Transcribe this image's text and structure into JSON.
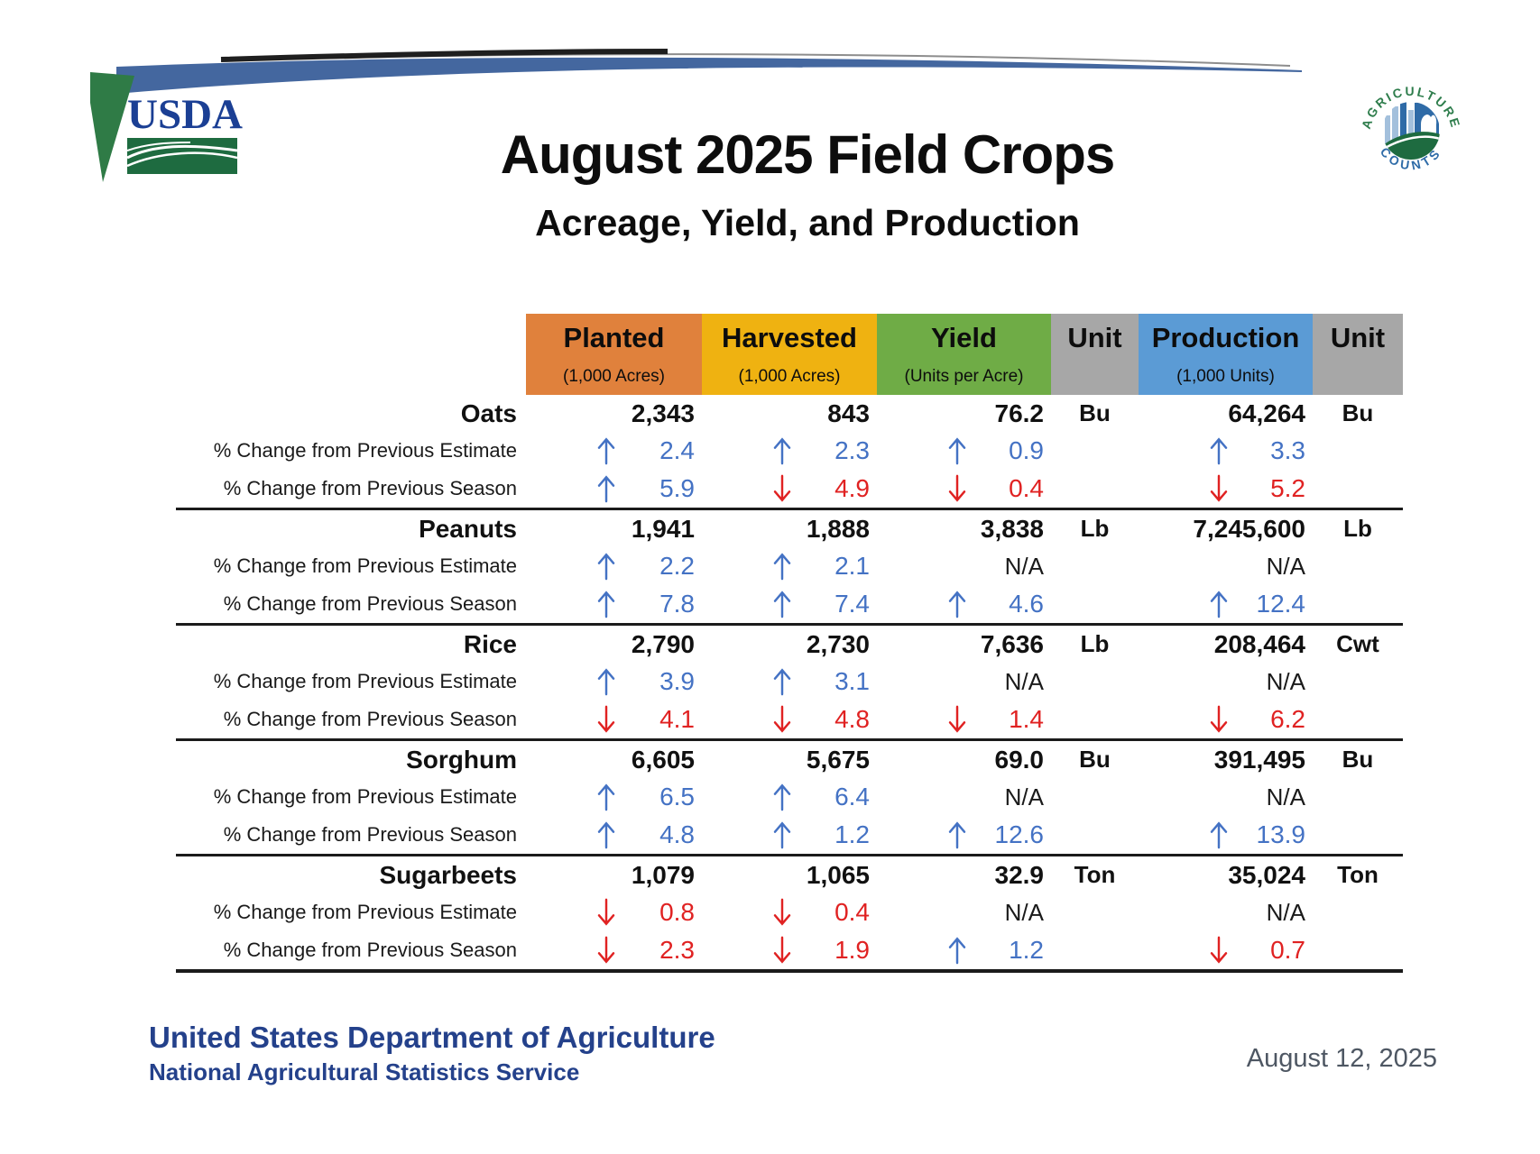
{
  "branding": {
    "usda_wordmark": "USDA",
    "agriculture_counts": {
      "top_arc": "AGRICULTURE",
      "bottom_arc": "COUNTS"
    }
  },
  "title": "August 2025 Field Crops",
  "subtitle": "Acreage, Yield, and Production",
  "table": {
    "columns": [
      {
        "key": "planted",
        "label": "Planted",
        "sublabel": "(1,000 Acres)",
        "color": "#E0813C"
      },
      {
        "key": "harvested",
        "label": "Harvested",
        "sublabel": "(1,000 Acres)",
        "color": "#EFB211"
      },
      {
        "key": "yield",
        "label": "Yield",
        "sublabel": "(Units per Acre)",
        "color": "#6FAC46"
      },
      {
        "key": "yield_unit",
        "label": "Unit",
        "sublabel": "",
        "color": "#A7A7A7"
      },
      {
        "key": "production",
        "label": "Production",
        "sublabel": "(1,000 Units)",
        "color": "#5B9BD5"
      },
      {
        "key": "production_unit",
        "label": "Unit",
        "sublabel": "",
        "color": "#A7A7A7"
      }
    ],
    "subrow_labels": {
      "estimate": "% Change from Previous Estimate",
      "season": "% Change from Previous Season"
    },
    "crops": [
      {
        "name": "Oats",
        "values": {
          "planted": "2,343",
          "harvested": "843",
          "yield": "76.2",
          "yield_unit": "Bu",
          "production": "64,264",
          "production_unit": "Bu"
        },
        "estimate": {
          "planted": {
            "dir": "up",
            "value": "2.4"
          },
          "harvested": {
            "dir": "up",
            "value": "2.3"
          },
          "yield": {
            "dir": "up",
            "value": "0.9"
          },
          "production": {
            "dir": "up",
            "value": "3.3"
          }
        },
        "season": {
          "planted": {
            "dir": "up",
            "value": "5.9"
          },
          "harvested": {
            "dir": "down",
            "value": "4.9"
          },
          "yield": {
            "dir": "down",
            "value": "0.4"
          },
          "production": {
            "dir": "down",
            "value": "5.2"
          }
        }
      },
      {
        "name": "Peanuts",
        "values": {
          "planted": "1,941",
          "harvested": "1,888",
          "yield": "3,838",
          "yield_unit": "Lb",
          "production": "7,245,600",
          "production_unit": "Lb"
        },
        "estimate": {
          "planted": {
            "dir": "up",
            "value": "2.2"
          },
          "harvested": {
            "dir": "up",
            "value": "2.1"
          },
          "yield": {
            "dir": null,
            "value": "N/A"
          },
          "production": {
            "dir": null,
            "value": "N/A"
          }
        },
        "season": {
          "planted": {
            "dir": "up",
            "value": "7.8"
          },
          "harvested": {
            "dir": "up",
            "value": "7.4"
          },
          "yield": {
            "dir": "up",
            "value": "4.6"
          },
          "production": {
            "dir": "up",
            "value": "12.4"
          }
        }
      },
      {
        "name": "Rice",
        "values": {
          "planted": "2,790",
          "harvested": "2,730",
          "yield": "7,636",
          "yield_unit": "Lb",
          "production": "208,464",
          "production_unit": "Cwt"
        },
        "estimate": {
          "planted": {
            "dir": "up",
            "value": "3.9"
          },
          "harvested": {
            "dir": "up",
            "value": "3.1"
          },
          "yield": {
            "dir": null,
            "value": "N/A"
          },
          "production": {
            "dir": null,
            "value": "N/A"
          }
        },
        "season": {
          "planted": {
            "dir": "down",
            "value": "4.1"
          },
          "harvested": {
            "dir": "down",
            "value": "4.8"
          },
          "yield": {
            "dir": "down",
            "value": "1.4"
          },
          "production": {
            "dir": "down",
            "value": "6.2"
          }
        }
      },
      {
        "name": "Sorghum",
        "values": {
          "planted": "6,605",
          "harvested": "5,675",
          "yield": "69.0",
          "yield_unit": "Bu",
          "production": "391,495",
          "production_unit": "Bu"
        },
        "estimate": {
          "planted": {
            "dir": "up",
            "value": "6.5"
          },
          "harvested": {
            "dir": "up",
            "value": "6.4"
          },
          "yield": {
            "dir": null,
            "value": "N/A"
          },
          "production": {
            "dir": null,
            "value": "N/A"
          }
        },
        "season": {
          "planted": {
            "dir": "up",
            "value": "4.8"
          },
          "harvested": {
            "dir": "up",
            "value": "1.2"
          },
          "yield": {
            "dir": "up",
            "value": "12.6"
          },
          "production": {
            "dir": "up",
            "value": "13.9"
          }
        }
      },
      {
        "name": "Sugarbeets",
        "values": {
          "planted": "1,079",
          "harvested": "1,065",
          "yield": "32.9",
          "yield_unit": "Ton",
          "production": "35,024",
          "production_unit": "Ton"
        },
        "estimate": {
          "planted": {
            "dir": "down",
            "value": "0.8"
          },
          "harvested": {
            "dir": "down",
            "value": "0.4"
          },
          "yield": {
            "dir": null,
            "value": "N/A"
          },
          "production": {
            "dir": null,
            "value": "N/A"
          }
        },
        "season": {
          "planted": {
            "dir": "down",
            "value": "2.3"
          },
          "harvested": {
            "dir": "down",
            "value": "1.9"
          },
          "yield": {
            "dir": "up",
            "value": "1.2"
          },
          "production": {
            "dir": "down",
            "value": "0.7"
          }
        }
      }
    ]
  },
  "footer": {
    "org_line1": "United States Department of Agriculture",
    "org_line2": "National Agricultural Statistics Service",
    "date": "August 12, 2025"
  },
  "colors": {
    "trend_up": "#4472C4",
    "trend_down": "#E02222",
    "footer_navy": "#24418B",
    "date_gray": "#4E5763",
    "usda_navy": "#1B3F94",
    "usda_green": "#1E6B40",
    "banner_blue": "#44679F",
    "banner_green": "#2F7B46"
  }
}
